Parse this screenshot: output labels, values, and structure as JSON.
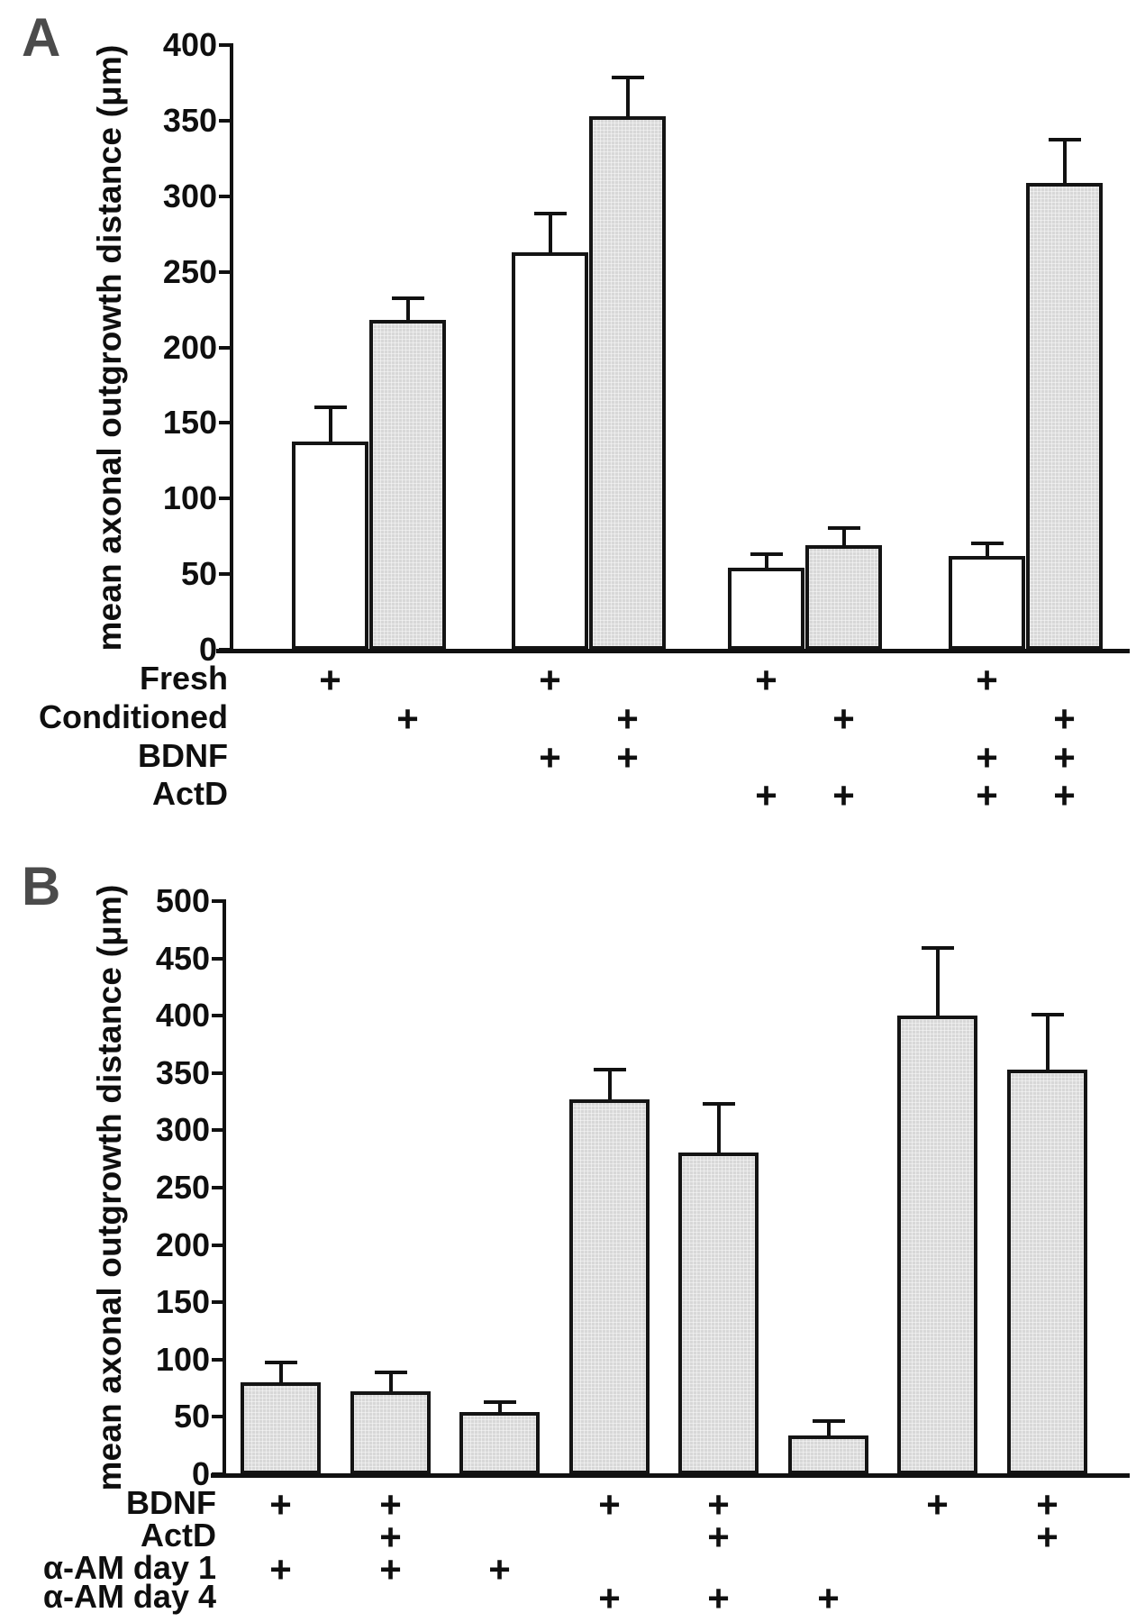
{
  "figure": {
    "background": "#ffffff",
    "text_color": "#0f0f0f",
    "panel_letter_color": "#4b4b4b",
    "bar_fill_gray": "#d8d8d8",
    "bar_fill_white": "#ffffff",
    "bar_outline": "#141414",
    "plus_symbol": "+"
  },
  "chart_data": [
    {
      "panel": "A",
      "type": "bar",
      "title": "",
      "xlabel": "",
      "ylabel": "mean axonal outgrowth distance (μm)",
      "ylim": [
        0,
        400
      ],
      "yticks": [
        0,
        50,
        100,
        150,
        200,
        250,
        300,
        350,
        400
      ],
      "grid": false,
      "legend": null,
      "error_bars": "upper only",
      "bars": [
        {
          "value": 138,
          "error_top": 161,
          "fill": "white",
          "conditions": [
            "Fresh"
          ]
        },
        {
          "value": 218,
          "error_top": 233,
          "fill": "gray",
          "conditions": [
            "Conditioned"
          ]
        },
        {
          "value": 263,
          "error_top": 289,
          "fill": "white",
          "conditions": [
            "Fresh",
            "BDNF"
          ]
        },
        {
          "value": 353,
          "error_top": 379,
          "fill": "gray",
          "conditions": [
            "Conditioned",
            "BDNF"
          ]
        },
        {
          "value": 54,
          "error_top": 64,
          "fill": "white",
          "conditions": [
            "Fresh",
            "ActD"
          ]
        },
        {
          "value": 69,
          "error_top": 81,
          "fill": "gray",
          "conditions": [
            "Conditioned",
            "ActD"
          ]
        },
        {
          "value": 62,
          "error_top": 71,
          "fill": "white",
          "conditions": [
            "Fresh",
            "BDNF",
            "ActD"
          ]
        },
        {
          "value": 309,
          "error_top": 338,
          "fill": "gray",
          "conditions": [
            "Conditioned",
            "BDNF",
            "ActD"
          ]
        }
      ],
      "condition_rows": [
        {
          "label": "Fresh",
          "plus_flags": [
            1,
            0,
            1,
            0,
            1,
            0,
            1,
            0
          ]
        },
        {
          "label": "Conditioned",
          "plus_flags": [
            0,
            1,
            0,
            1,
            0,
            1,
            0,
            1
          ]
        },
        {
          "label": "BDNF",
          "plus_flags": [
            0,
            0,
            1,
            1,
            0,
            0,
            1,
            1
          ]
        },
        {
          "label": "ActD",
          "plus_flags": [
            0,
            0,
            0,
            0,
            1,
            1,
            1,
            1
          ]
        }
      ]
    },
    {
      "panel": "B",
      "type": "bar",
      "title": "",
      "xlabel": "",
      "ylabel": "mean axonal outgrowth distance (μm)",
      "ylim": [
        0,
        500
      ],
      "yticks": [
        0,
        50,
        100,
        150,
        200,
        250,
        300,
        350,
        400,
        450,
        500
      ],
      "grid": false,
      "legend": null,
      "error_bars": "upper only",
      "bars": [
        {
          "value": 80,
          "error_top": 98,
          "fill": "gray",
          "conditions": [
            "BDNF",
            "α-AM day 1"
          ]
        },
        {
          "value": 72,
          "error_top": 90,
          "fill": "gray",
          "conditions": [
            "BDNF",
            "ActD",
            "α-AM day 1"
          ]
        },
        {
          "value": 54,
          "error_top": 64,
          "fill": "gray",
          "conditions": [
            "α-AM day 1"
          ]
        },
        {
          "value": 327,
          "error_top": 354,
          "fill": "gray",
          "conditions": [
            "BDNF",
            "α-AM day 4"
          ]
        },
        {
          "value": 281,
          "error_top": 324,
          "fill": "gray",
          "conditions": [
            "BDNF",
            "ActD",
            "α-AM day 4"
          ]
        },
        {
          "value": 34,
          "error_top": 47,
          "fill": "gray",
          "conditions": [
            "α-AM day 4"
          ]
        },
        {
          "value": 400,
          "error_top": 460,
          "fill": "gray",
          "conditions": [
            "BDNF"
          ]
        },
        {
          "value": 353,
          "error_top": 402,
          "fill": "gray",
          "conditions": [
            "BDNF",
            "ActD"
          ]
        }
      ],
      "condition_rows": [
        {
          "label": "BDNF",
          "plus_flags": [
            1,
            1,
            0,
            1,
            1,
            0,
            1,
            1
          ]
        },
        {
          "label": "ActD",
          "plus_flags": [
            0,
            1,
            0,
            0,
            1,
            0,
            0,
            1
          ]
        },
        {
          "label": "α-AM day 1",
          "plus_flags": [
            1,
            1,
            1,
            0,
            0,
            0,
            0,
            0
          ]
        },
        {
          "label": "α-AM day 4",
          "plus_flags": [
            0,
            0,
            0,
            1,
            1,
            1,
            0,
            0
          ]
        }
      ]
    }
  ]
}
